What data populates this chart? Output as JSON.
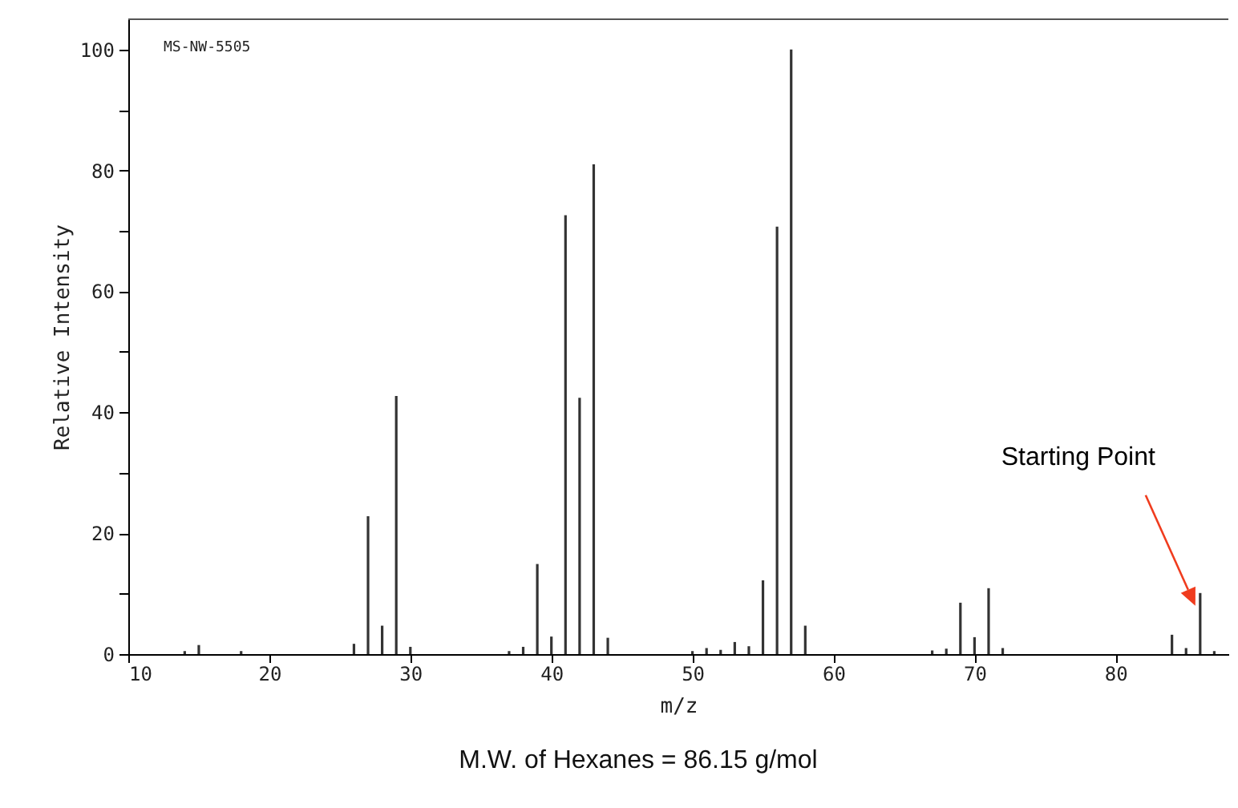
{
  "chart_data": {
    "type": "bar",
    "xlabel": "m/z",
    "ylabel": "Relative Intensity",
    "color": "#333333",
    "x": [
      14,
      15,
      18,
      26,
      27,
      28,
      29,
      30,
      37,
      38,
      39,
      40,
      41,
      42,
      43,
      44,
      50,
      51,
      52,
      53,
      54,
      55,
      56,
      57,
      58,
      67,
      68,
      69,
      70,
      71,
      72,
      84,
      85,
      86,
      87
    ],
    "values": [
      0.5,
      1.5,
      0.5,
      1.7,
      22.8,
      4.7,
      42.7,
      1.2,
      0.5,
      1.2,
      14.9,
      2.9,
      72.6,
      42.4,
      81.0,
      2.7,
      0.5,
      1.0,
      0.7,
      2.0,
      1.3,
      12.2,
      70.7,
      100,
      4.7,
      0.6,
      0.9,
      8.5,
      2.8,
      10.9,
      1.0,
      3.2,
      1.0,
      10.1,
      0.5
    ],
    "xlim": [
      10,
      88
    ],
    "xticks": [
      10,
      20,
      30,
      40,
      50,
      60,
      70,
      80
    ],
    "ylim": [
      0,
      105
    ],
    "yticks": [
      0,
      {
        "value": 10,
        "label": null
      },
      20,
      {
        "value": 30,
        "label": null
      },
      40,
      {
        "value": 50,
        "label": null
      },
      60,
      {
        "value": 70,
        "label": null
      },
      80,
      {
        "value": 90,
        "label": null
      },
      100
    ],
    "annotations": [
      "MS-NW-5505",
      {
        "text": "Starting Point",
        "x": 86,
        "y": 10.1
      },
      "M.W. of Hexanes = 86.15 g/mol"
    ]
  }
}
